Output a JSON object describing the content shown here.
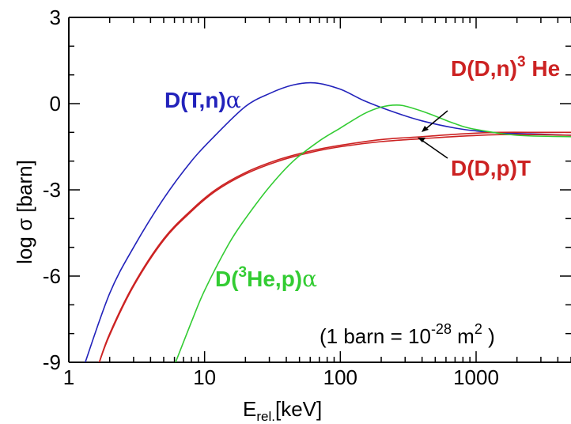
{
  "chart_data": {
    "type": "line",
    "xscale": "log",
    "xlim": [
      1,
      5000
    ],
    "ylim": [
      -9,
      3
    ],
    "xlabel_main": "E",
    "xlabel_sub": "rel.",
    "xlabel_unit": "[keV]",
    "ylabel": "log  σ  [barn]",
    "x_ticks": [
      1,
      10,
      100,
      1000
    ],
    "x_tick_labels": [
      "1",
      "10",
      "100",
      "1000"
    ],
    "y_ticks": [
      3,
      0,
      -3,
      -6,
      -9
    ],
    "y_tick_labels": [
      "3",
      "0",
      "-3",
      "-6",
      "-9"
    ],
    "grid": false,
    "note": {
      "text": "(1 barn = 10",
      "exp": "-28",
      "unit": " m",
      "unit_exp": "2",
      "close": " )"
    },
    "series": [
      {
        "label_parts": [
          "D(T,n)",
          "α"
        ],
        "color": "#2222bb",
        "x": [
          1.3,
          2,
          3,
          5,
          8,
          12,
          20,
          30,
          45,
          65,
          100,
          150,
          250,
          400,
          700,
          1000,
          1500,
          2500,
          5000
        ],
        "y": [
          -9.1,
          -6.6,
          -5.0,
          -3.3,
          -2.0,
          -1.1,
          -0.1,
          0.35,
          0.65,
          0.72,
          0.5,
          0.1,
          -0.3,
          -0.6,
          -0.85,
          -0.95,
          -1.02,
          -1.05,
          -1.1
        ]
      },
      {
        "label_parts": [
          "D(D,n)",
          "3",
          " He"
        ],
        "color": "#cc2222",
        "x": [
          1.65,
          2,
          3,
          5,
          8,
          12,
          20,
          35,
          60,
          100,
          200,
          400,
          800,
          1500,
          3000,
          5000
        ],
        "y": [
          -9.1,
          -8.0,
          -6.3,
          -4.7,
          -3.7,
          -3.0,
          -2.4,
          -1.95,
          -1.65,
          -1.45,
          -1.25,
          -1.15,
          -1.05,
          -1.0,
          -1.0,
          -1.0
        ]
      },
      {
        "label_parts": [
          "D(D,p)T"
        ],
        "color": "#cc2222",
        "x": [
          1.65,
          2,
          3,
          5,
          8,
          12,
          20,
          35,
          60,
          100,
          200,
          400,
          800,
          1500,
          3000,
          5000
        ],
        "y": [
          -9.1,
          -8.05,
          -6.35,
          -4.75,
          -3.75,
          -3.05,
          -2.45,
          -2.0,
          -1.7,
          -1.5,
          -1.32,
          -1.22,
          -1.13,
          -1.08,
          -1.08,
          -1.1
        ]
      },
      {
        "label_parts": [
          "D(",
          "3",
          "He,p)",
          "α"
        ],
        "color": "#33cc33",
        "x": [
          6,
          8,
          10,
          15,
          20,
          30,
          45,
          70,
          100,
          150,
          200,
          260,
          320,
          450,
          700,
          1000,
          2000,
          5000
        ],
        "y": [
          -9.1,
          -7.6,
          -6.5,
          -4.9,
          -4.0,
          -2.9,
          -2.0,
          -1.3,
          -0.85,
          -0.35,
          -0.12,
          -0.05,
          -0.12,
          -0.35,
          -0.7,
          -0.9,
          -1.1,
          -1.15
        ]
      }
    ]
  }
}
